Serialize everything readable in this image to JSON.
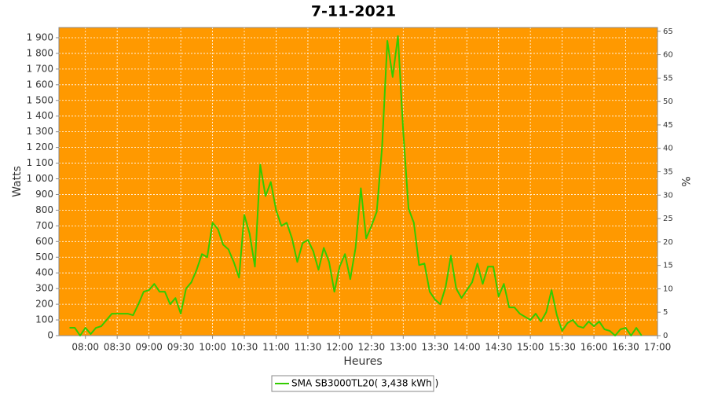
{
  "chart_data": {
    "type": "line",
    "title": "7-11-2021",
    "x_label": "Heures",
    "y_label": "Watts",
    "y2_label": "%",
    "x": [
      "07:45",
      "07:50",
      "07:55",
      "08:00",
      "08:05",
      "08:10",
      "08:15",
      "08:20",
      "08:25",
      "08:30",
      "08:35",
      "08:40",
      "08:45",
      "08:50",
      "08:55",
      "09:00",
      "09:05",
      "09:10",
      "09:15",
      "09:20",
      "09:25",
      "09:30",
      "09:35",
      "09:40",
      "09:45",
      "09:50",
      "09:55",
      "10:00",
      "10:05",
      "10:10",
      "10:15",
      "10:20",
      "10:25",
      "10:30",
      "10:35",
      "10:40",
      "10:45",
      "10:50",
      "10:55",
      "11:00",
      "11:05",
      "11:10",
      "11:15",
      "11:20",
      "11:25",
      "11:30",
      "11:35",
      "11:40",
      "11:45",
      "11:50",
      "11:55",
      "12:00",
      "12:05",
      "12:10",
      "12:15",
      "12:20",
      "12:25",
      "12:30",
      "12:35",
      "12:40",
      "12:45",
      "12:50",
      "12:55",
      "13:00",
      "13:05",
      "13:10",
      "13:15",
      "13:20",
      "13:25",
      "13:30",
      "13:35",
      "13:40",
      "13:45",
      "13:50",
      "13:55",
      "14:00",
      "14:05",
      "14:10",
      "14:15",
      "14:20",
      "14:25",
      "14:30",
      "14:35",
      "14:40",
      "14:45",
      "14:50",
      "14:55",
      "15:00",
      "15:05",
      "15:10",
      "15:15",
      "15:20",
      "15:25",
      "15:30",
      "15:35",
      "15:40",
      "15:45",
      "15:50",
      "15:55",
      "16:00",
      "16:05",
      "16:10",
      "16:15",
      "16:20",
      "16:25",
      "16:30",
      "16:35",
      "16:40",
      "16:45"
    ],
    "series": [
      {
        "name": "SMA SB3000TL20( 3,438 kWh )",
        "color": "#33cc00",
        "values": [
          50,
          50,
          0,
          50,
          10,
          50,
          60,
          100,
          140,
          140,
          140,
          140,
          130,
          200,
          280,
          290,
          330,
          280,
          280,
          200,
          240,
          140,
          300,
          340,
          420,
          520,
          500,
          720,
          680,
          580,
          550,
          470,
          370,
          770,
          650,
          440,
          1090,
          890,
          980,
          800,
          700,
          720,
          620,
          470,
          590,
          610,
          540,
          420,
          560,
          470,
          280,
          440,
          520,
          360,
          560,
          940,
          620,
          700,
          790,
          1200,
          1880,
          1650,
          1910,
          1300,
          810,
          720,
          450,
          460,
          280,
          230,
          200,
          310,
          510,
          300,
          240,
          290,
          340,
          460,
          330,
          440,
          440,
          250,
          330,
          180,
          180,
          140,
          120,
          100,
          140,
          90,
          150,
          290,
          130,
          30,
          80,
          100,
          60,
          50,
          90,
          60,
          90,
          40,
          30,
          0,
          40,
          50,
          0,
          50,
          0
        ]
      }
    ],
    "xlim": [
      "07:35",
      "17:00"
    ],
    "xticks": [
      "08:00",
      "08:30",
      "09:00",
      "09:30",
      "10:00",
      "10:30",
      "11:00",
      "11:30",
      "12:00",
      "12:30",
      "13:00",
      "13:30",
      "14:00",
      "14:30",
      "15:00",
      "15:30",
      "16:00",
      "16:30",
      "17:00"
    ],
    "ylim": [
      0,
      1965
    ],
    "yticks": [
      0,
      100,
      200,
      300,
      400,
      500,
      600,
      700,
      800,
      900,
      {
        "value": 1000,
        "label": "1 000"
      },
      {
        "value": 1100,
        "label": "1 100"
      },
      {
        "value": 1200,
        "label": "1 200"
      },
      {
        "value": 1300,
        "label": "1 300"
      },
      {
        "value": 1400,
        "label": "1 400"
      },
      {
        "value": 1500,
        "label": "1 500"
      },
      {
        "value": 1600,
        "label": "1 600"
      },
      {
        "value": 1700,
        "label": "1 700"
      },
      {
        "value": 1800,
        "label": "1 800"
      },
      {
        "value": 1900,
        "label": "1 900"
      }
    ],
    "y2lim": [
      0,
      65.8
    ],
    "y2ticks": [
      0,
      5,
      10,
      15,
      20,
      25,
      30,
      35,
      40,
      45,
      50,
      55,
      60,
      65
    ],
    "background": "#ff9900",
    "grid": true
  }
}
